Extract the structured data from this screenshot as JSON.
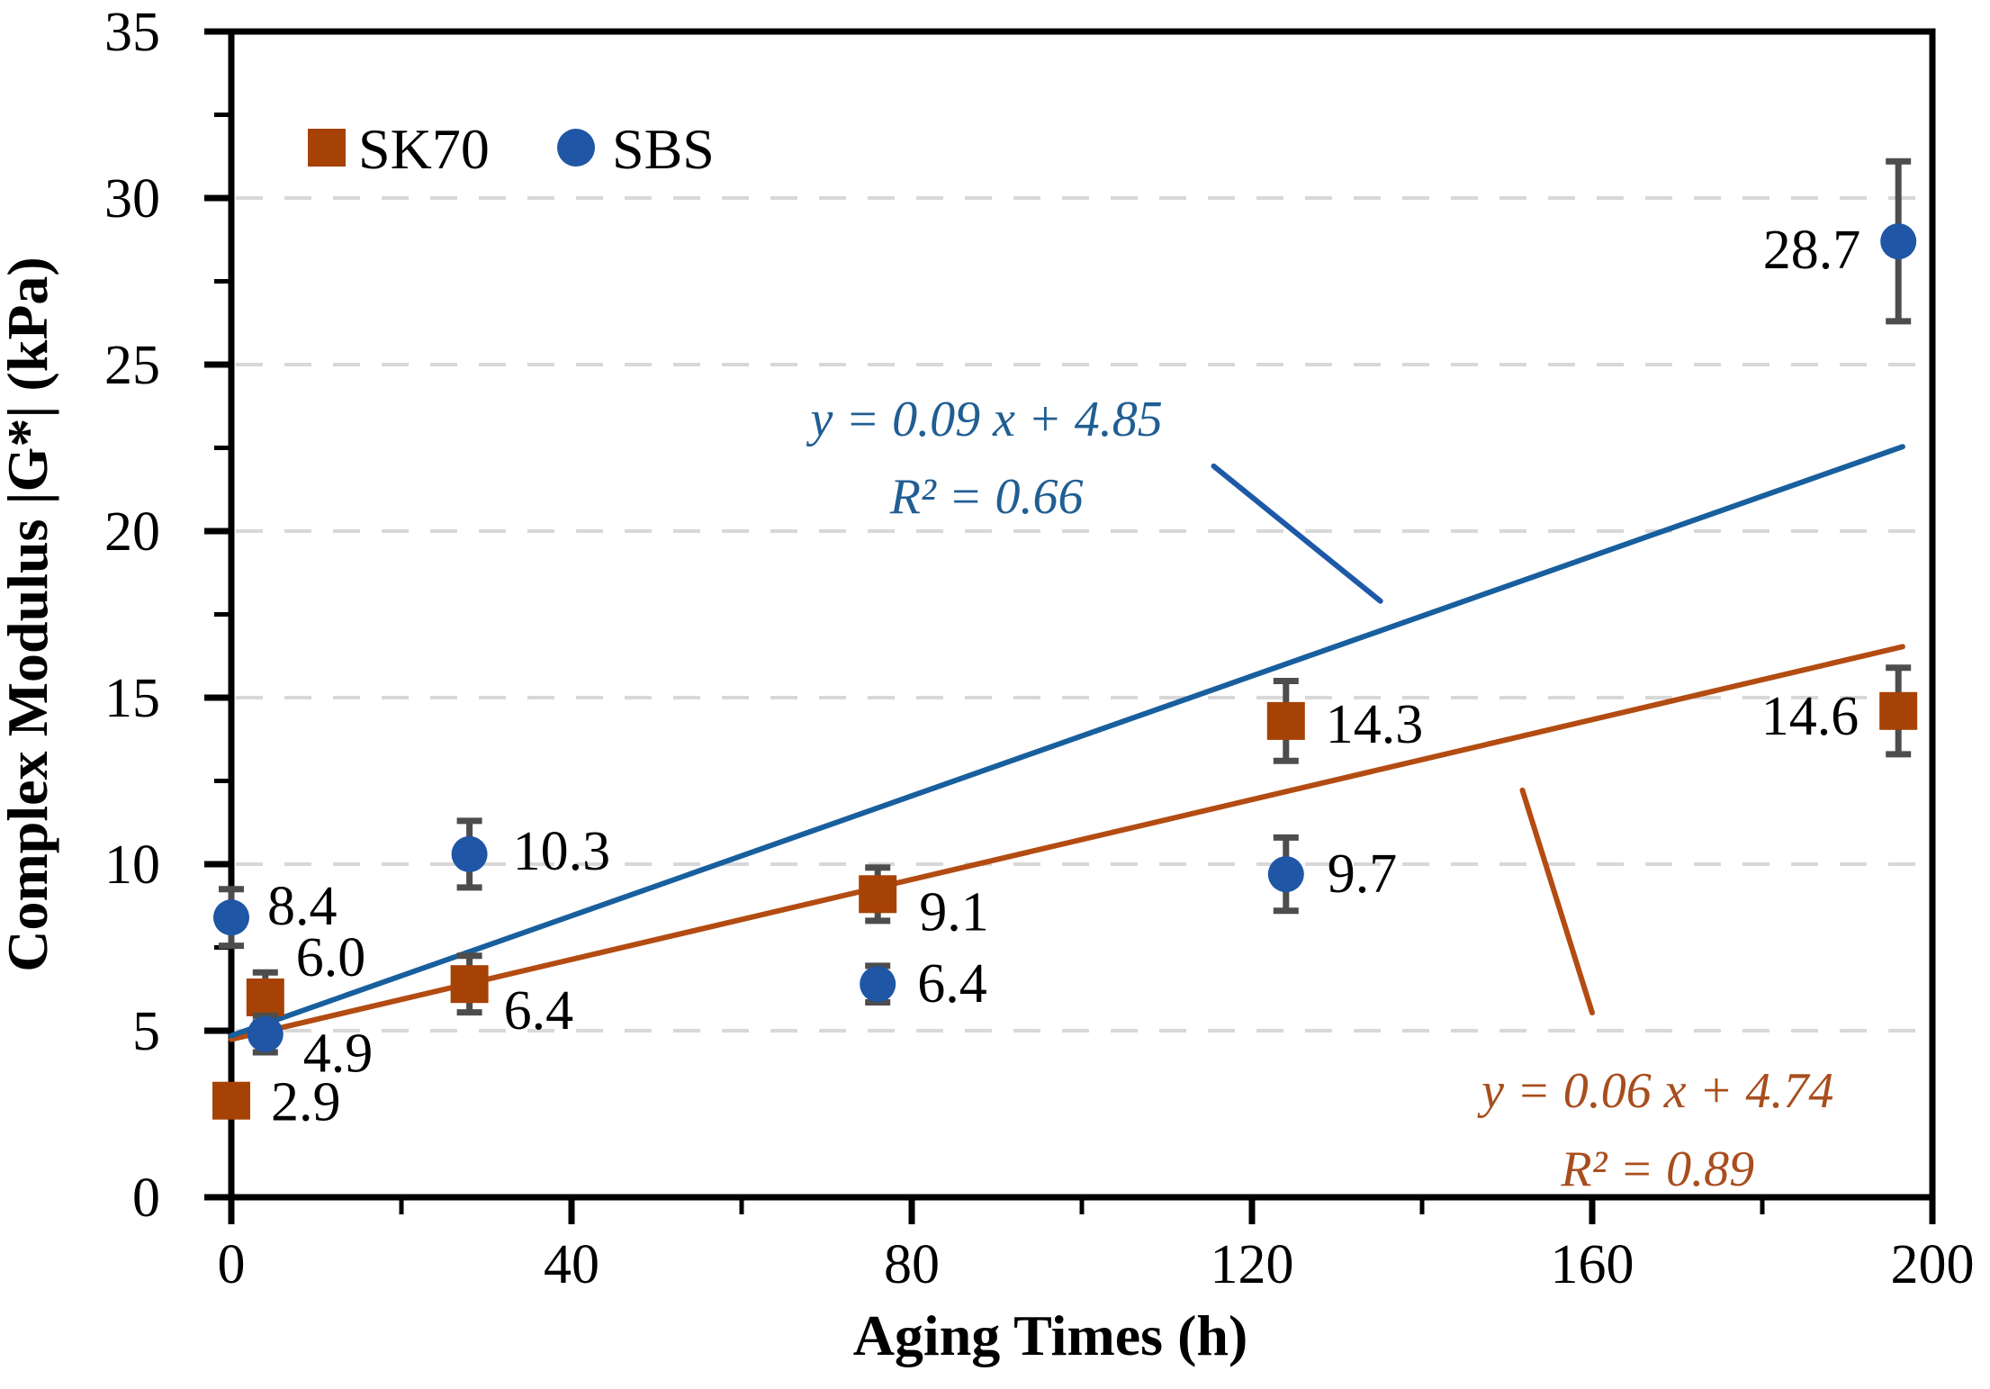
{
  "figure": {
    "background": "#ffffff"
  },
  "chart_data": {
    "type": "scatter",
    "title": "",
    "xlabel": "Aging Times (h)",
    "ylabel": "Complex Modulus |G*| (kPa)",
    "xlim": [
      0,
      200
    ],
    "ylim": [
      0,
      35
    ],
    "x_major_ticks": [
      0,
      40,
      80,
      120,
      160,
      200
    ],
    "x_minor_ticks": [
      20,
      60,
      100,
      140,
      180
    ],
    "y_major_ticks": [
      0,
      5,
      10,
      15,
      20,
      25,
      30,
      35
    ],
    "y_minor_ticks": [
      2.5,
      7.5,
      12.5,
      17.5,
      22.5,
      27.5,
      32.5
    ],
    "gridline_values": [
      5,
      10,
      15,
      20,
      25,
      30
    ],
    "grid_style": "dashed-horizontal",
    "grid_color": "#d8d8d8",
    "axis_color": "#000000",
    "errorbar_color": "#4d4d4d",
    "legend": {
      "position": "top-left-inside",
      "items": [
        {
          "label": "SK70",
          "marker": "square",
          "color": "#a64206"
        },
        {
          "label": "SBS",
          "marker": "circle",
          "color": "#1f56a5"
        }
      ]
    },
    "series": [
      {
        "name": "SK70",
        "marker": "square",
        "color": "#a64206",
        "x": [
          0,
          4,
          28,
          76,
          124,
          196
        ],
        "y": [
          2.9,
          6.0,
          6.4,
          9.1,
          14.3,
          14.6
        ],
        "yerr": [
          0.3,
          0.75,
          0.85,
          0.8,
          1.2,
          1.3
        ],
        "point_labels": [
          "2.9",
          "6.0",
          "6.4",
          "9.1",
          "14.3",
          "14.6"
        ],
        "label_offsets": [
          {
            "dx": 44,
            "dy": 22,
            "anchor": "start"
          },
          {
            "dx": 34,
            "dy": -24,
            "anchor": "start"
          },
          {
            "dx": 38,
            "dy": 50,
            "anchor": "start"
          },
          {
            "dx": 46,
            "dy": 40,
            "anchor": "start"
          },
          {
            "dx": 44,
            "dy": 24,
            "anchor": "start"
          },
          {
            "dx": -44,
            "dy": 26,
            "anchor": "end"
          }
        ],
        "trend": {
          "slope": 0.06,
          "intercept": 4.74,
          "equation": "y = 0.06 x + 4.74",
          "r2": "R² = 0.89",
          "line_color": "#b34c12",
          "x_range": [
            0,
            196.5
          ]
        }
      },
      {
        "name": "SBS",
        "marker": "circle",
        "color": "#1f56a5",
        "x": [
          0,
          4,
          28,
          76,
          124,
          196
        ],
        "y": [
          8.4,
          4.9,
          10.3,
          6.4,
          9.7,
          28.7
        ],
        "yerr": [
          0.85,
          0.55,
          1.0,
          0.55,
          1.1,
          2.4
        ],
        "point_labels": [
          "8.4",
          "4.9",
          "10.3",
          "6.4",
          "9.7",
          "28.7"
        ],
        "label_offsets": [
          {
            "dx": 40,
            "dy": 8,
            "anchor": "start"
          },
          {
            "dx": 42,
            "dy": 42,
            "anchor": "start"
          },
          {
            "dx": 48,
            "dy": 17,
            "anchor": "start"
          },
          {
            "dx": 44,
            "dy": 20,
            "anchor": "start"
          },
          {
            "dx": 46,
            "dy": 20,
            "anchor": "start"
          },
          {
            "dx": -42,
            "dy": 30,
            "anchor": "end"
          }
        ],
        "trend": {
          "slope": 0.09,
          "intercept": 4.85,
          "equation": "y = 0.09 x + 4.85",
          "r2": "R² = 0.66",
          "line_color": "#185f9e",
          "x_range": [
            0,
            196.5
          ]
        }
      }
    ],
    "annotations": [
      {
        "name": "sbs-equation",
        "lines": [
          "y = 0.09 x + 4.85",
          "R² = 0.66"
        ],
        "color": "#205e93",
        "x_data": 88.8,
        "y_baselines": [
          22.86,
          20.54
        ],
        "leader": {
          "from": [
            115.5,
            21.95
          ],
          "to": [
            135.1,
            17.9
          ],
          "color": "#1d59a8"
        }
      },
      {
        "name": "sk70-equation",
        "lines": [
          "y = 0.06 x + 4.74",
          "R² = 0.89"
        ],
        "color": "#a84e1e",
        "x_data": 167.7,
        "y_baselines": [
          2.7,
          0.35
        ],
        "leader": {
          "from": [
            151.8,
            12.22
          ],
          "to": [
            160.0,
            5.54
          ],
          "color": "#b34c12"
        }
      }
    ]
  }
}
